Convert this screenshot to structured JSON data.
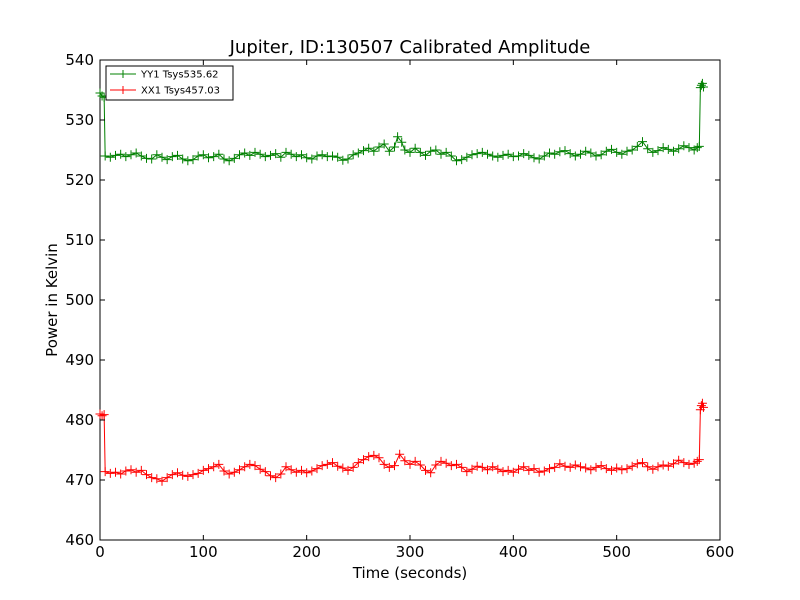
{
  "chart_data": {
    "type": "line",
    "title": "Jupiter, ID:130507 Calibrated Amplitude",
    "xlabel": "Time (seconds)",
    "ylabel": "Power in Kelvin",
    "xlim": [
      0,
      600
    ],
    "ylim": [
      460,
      540
    ],
    "xticks": [
      0,
      100,
      200,
      300,
      400,
      500,
      600
    ],
    "yticks": [
      460,
      470,
      480,
      490,
      500,
      510,
      520,
      530,
      540
    ],
    "grid": false,
    "legend": "top-left",
    "marker": "plus",
    "series": [
      {
        "name": "YY1 Tsys535.62",
        "color": "#008000",
        "points": [
          [
            0,
            534.5
          ],
          [
            2,
            534
          ],
          [
            4,
            533.8
          ],
          [
            5,
            524
          ],
          [
            10,
            523.8
          ],
          [
            15,
            524.1
          ],
          [
            20,
            524.3
          ],
          [
            25,
            523.9
          ],
          [
            30,
            524.2
          ],
          [
            35,
            524.5
          ],
          [
            40,
            524
          ],
          [
            45,
            523.6
          ],
          [
            50,
            523.5
          ],
          [
            55,
            524.2
          ],
          [
            60,
            523.8
          ],
          [
            65,
            523.4
          ],
          [
            70,
            523.9
          ],
          [
            75,
            524.1
          ],
          [
            80,
            523.5
          ],
          [
            85,
            523.2
          ],
          [
            90,
            523.4
          ],
          [
            95,
            524
          ],
          [
            100,
            524.2
          ],
          [
            105,
            523.7
          ],
          [
            110,
            523.9
          ],
          [
            115,
            524.3
          ],
          [
            120,
            523.5
          ],
          [
            125,
            523.2
          ],
          [
            130,
            523.6
          ],
          [
            135,
            524.2
          ],
          [
            140,
            524.5
          ],
          [
            145,
            524.1
          ],
          [
            150,
            524.6
          ],
          [
            155,
            524.3
          ],
          [
            160,
            523.9
          ],
          [
            165,
            524.1
          ],
          [
            170,
            524.4
          ],
          [
            175,
            523.8
          ],
          [
            180,
            524.6
          ],
          [
            185,
            524.3
          ],
          [
            190,
            523.9
          ],
          [
            195,
            524.2
          ],
          [
            200,
            523.7
          ],
          [
            205,
            523.5
          ],
          [
            210,
            524
          ],
          [
            215,
            524.2
          ],
          [
            220,
            523.9
          ],
          [
            225,
            524
          ],
          [
            230,
            523.8
          ],
          [
            235,
            523.3
          ],
          [
            240,
            523.5
          ],
          [
            245,
            524.2
          ],
          [
            250,
            524.5
          ],
          [
            255,
            524.9
          ],
          [
            260,
            525.3
          ],
          [
            265,
            524.8
          ],
          [
            270,
            525.5
          ],
          [
            275,
            526
          ],
          [
            280,
            524.8
          ],
          [
            285,
            525.5
          ],
          [
            288,
            527.2
          ],
          [
            292,
            526.3
          ],
          [
            295,
            525
          ],
          [
            300,
            524.6
          ],
          [
            305,
            525.3
          ],
          [
            310,
            524.6
          ],
          [
            315,
            524.1
          ],
          [
            320,
            524.8
          ],
          [
            325,
            525
          ],
          [
            330,
            524.3
          ],
          [
            335,
            524.6
          ],
          [
            340,
            524
          ],
          [
            345,
            523.2
          ],
          [
            350,
            523.4
          ],
          [
            355,
            523.8
          ],
          [
            360,
            524.2
          ],
          [
            365,
            524.4
          ],
          [
            370,
            524.6
          ],
          [
            375,
            524.3
          ],
          [
            380,
            524
          ],
          [
            385,
            523.8
          ],
          [
            390,
            524.1
          ],
          [
            395,
            524.3
          ],
          [
            400,
            523.9
          ],
          [
            405,
            524
          ],
          [
            410,
            524.4
          ],
          [
            415,
            524.1
          ],
          [
            420,
            523.7
          ],
          [
            425,
            523.5
          ],
          [
            430,
            524
          ],
          [
            435,
            524.5
          ],
          [
            440,
            524.3
          ],
          [
            445,
            524.7
          ],
          [
            450,
            524.9
          ],
          [
            455,
            524.4
          ],
          [
            460,
            524
          ],
          [
            465,
            524.3
          ],
          [
            470,
            524.8
          ],
          [
            475,
            524.5
          ],
          [
            480,
            524
          ],
          [
            485,
            524.2
          ],
          [
            490,
            524.8
          ],
          [
            495,
            525.1
          ],
          [
            500,
            524.6
          ],
          [
            505,
            524.3
          ],
          [
            510,
            524.8
          ],
          [
            515,
            525
          ],
          [
            520,
            525.6
          ],
          [
            525,
            526.4
          ],
          [
            530,
            525.2
          ],
          [
            535,
            524.6
          ],
          [
            540,
            524.9
          ],
          [
            545,
            525.4
          ],
          [
            550,
            525.1
          ],
          [
            555,
            524.8
          ],
          [
            560,
            525.2
          ],
          [
            565,
            525.7
          ],
          [
            570,
            525.4
          ],
          [
            575,
            525
          ],
          [
            578,
            525.4
          ],
          [
            580,
            525.6
          ],
          [
            581,
            535.4
          ],
          [
            582,
            535.8
          ],
          [
            583,
            536.1
          ],
          [
            584,
            535.5
          ]
        ]
      },
      {
        "name": "XX1 Tsys457.03",
        "color": "#ff0000",
        "points": [
          [
            0,
            481
          ],
          [
            2,
            480.7
          ],
          [
            4,
            480.9
          ],
          [
            5,
            471.4
          ],
          [
            10,
            471.1
          ],
          [
            15,
            471.3
          ],
          [
            20,
            471
          ],
          [
            25,
            471.5
          ],
          [
            30,
            471.7
          ],
          [
            35,
            471.3
          ],
          [
            40,
            471.6
          ],
          [
            45,
            470.9
          ],
          [
            50,
            470.4
          ],
          [
            55,
            470.2
          ],
          [
            60,
            469.8
          ],
          [
            65,
            470.4
          ],
          [
            70,
            470.9
          ],
          [
            75,
            471.2
          ],
          [
            80,
            470.8
          ],
          [
            85,
            470.6
          ],
          [
            90,
            470.9
          ],
          [
            95,
            471.1
          ],
          [
            100,
            471.6
          ],
          [
            105,
            471.9
          ],
          [
            110,
            472.2
          ],
          [
            115,
            472.6
          ],
          [
            120,
            471.5
          ],
          [
            125,
            471
          ],
          [
            130,
            471.3
          ],
          [
            135,
            471.7
          ],
          [
            140,
            472.2
          ],
          [
            145,
            472.6
          ],
          [
            150,
            472.4
          ],
          [
            155,
            471.8
          ],
          [
            160,
            471.4
          ],
          [
            165,
            470.7
          ],
          [
            170,
            470.4
          ],
          [
            175,
            471
          ],
          [
            180,
            472.2
          ],
          [
            185,
            471.7
          ],
          [
            190,
            471.3
          ],
          [
            195,
            471.6
          ],
          [
            200,
            471.2
          ],
          [
            205,
            471.5
          ],
          [
            210,
            471.9
          ],
          [
            215,
            472.4
          ],
          [
            220,
            472.6
          ],
          [
            225,
            472.9
          ],
          [
            230,
            472.3
          ],
          [
            235,
            472
          ],
          [
            240,
            471.6
          ],
          [
            245,
            472.1
          ],
          [
            250,
            472.9
          ],
          [
            255,
            473.4
          ],
          [
            260,
            473.9
          ],
          [
            265,
            474.1
          ],
          [
            270,
            473.7
          ],
          [
            275,
            472.6
          ],
          [
            280,
            472.1
          ],
          [
            285,
            472.4
          ],
          [
            290,
            474.3
          ],
          [
            295,
            473.2
          ],
          [
            300,
            472.6
          ],
          [
            305,
            473.1
          ],
          [
            310,
            472.5
          ],
          [
            315,
            471.6
          ],
          [
            320,
            471.2
          ],
          [
            325,
            472.5
          ],
          [
            330,
            473.1
          ],
          [
            335,
            472.8
          ],
          [
            340,
            472.4
          ],
          [
            345,
            472.6
          ],
          [
            350,
            472.1
          ],
          [
            355,
            471.4
          ],
          [
            360,
            471.8
          ],
          [
            365,
            472.3
          ],
          [
            370,
            472.1
          ],
          [
            375,
            471.7
          ],
          [
            380,
            472.2
          ],
          [
            385,
            471.8
          ],
          [
            390,
            471.4
          ],
          [
            395,
            471.6
          ],
          [
            400,
            471.3
          ],
          [
            405,
            471.8
          ],
          [
            410,
            472.2
          ],
          [
            415,
            471.6
          ],
          [
            420,
            471.9
          ],
          [
            425,
            471.3
          ],
          [
            430,
            471.5
          ],
          [
            435,
            471.9
          ],
          [
            440,
            472.1
          ],
          [
            445,
            472.7
          ],
          [
            450,
            472.3
          ],
          [
            455,
            472.1
          ],
          [
            460,
            472.5
          ],
          [
            465,
            472.2
          ],
          [
            470,
            472
          ],
          [
            475,
            471.7
          ],
          [
            480,
            472.1
          ],
          [
            485,
            472.4
          ],
          [
            490,
            471.9
          ],
          [
            495,
            471.6
          ],
          [
            500,
            472
          ],
          [
            505,
            471.7
          ],
          [
            510,
            471.9
          ],
          [
            515,
            472.3
          ],
          [
            520,
            472.7
          ],
          [
            525,
            472.9
          ],
          [
            530,
            472.2
          ],
          [
            535,
            471.8
          ],
          [
            540,
            472.2
          ],
          [
            545,
            472.5
          ],
          [
            550,
            472.3
          ],
          [
            555,
            472.7
          ],
          [
            560,
            473.3
          ],
          [
            565,
            472.9
          ],
          [
            570,
            472.6
          ],
          [
            575,
            472.8
          ],
          [
            578,
            473.1
          ],
          [
            580,
            473.4
          ],
          [
            581,
            481.7
          ],
          [
            582,
            482.4
          ],
          [
            583,
            482.8
          ],
          [
            584,
            482.1
          ]
        ]
      }
    ]
  }
}
